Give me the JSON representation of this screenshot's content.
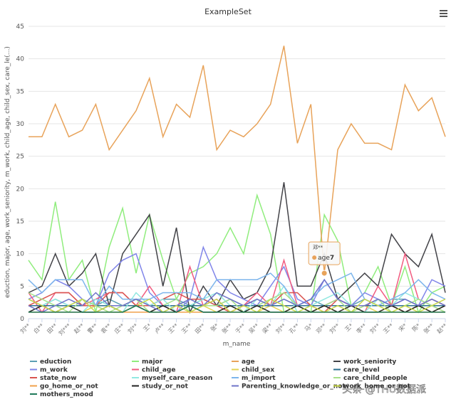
{
  "chart_data": {
    "type": "line",
    "title": "ExampleSet",
    "x_label": "m_name",
    "y_label": "eduction, major, age, work_seniority, m_work, child_age, child_sex, care_le(...)",
    "categories": [
      "刘**",
      "白**",
      "田**",
      "刘***",
      "赵**",
      "曹**",
      "袁**",
      "庄**",
      "刘**",
      "王*",
      "卢**",
      "王**",
      "王**",
      "田**",
      "张*",
      "张**",
      "于**",
      "吴**",
      "梁**",
      "刘**",
      "孔**",
      "马*",
      "邓**",
      "刘**",
      "王*",
      "李**",
      "刘**",
      "王**",
      "宋*",
      "陈*",
      "张**",
      "赵**"
    ],
    "ylim": [
      0,
      45
    ],
    "yticks": [
      0,
      5,
      10,
      15,
      20,
      25,
      30,
      35,
      40,
      45
    ],
    "grid": true,
    "series": [
      {
        "name": "eduction",
        "color": "#5b9fb5",
        "values": [
          3,
          2,
          3,
          2,
          3,
          2,
          3,
          2,
          3,
          2,
          3,
          3,
          2,
          3,
          2,
          3,
          2,
          3,
          2,
          3,
          2,
          3,
          2,
          3,
          2,
          3,
          2,
          3,
          3,
          2,
          3,
          2
        ]
      },
      {
        "name": "major",
        "color": "#90ed7d",
        "values": [
          9,
          6,
          18,
          6,
          9,
          1,
          11,
          17,
          7,
          16,
          9,
          3,
          7,
          8,
          10,
          14,
          10,
          19,
          13,
          1,
          2,
          1,
          16,
          12,
          2,
          4,
          8,
          2,
          8,
          1,
          4,
          5
        ]
      },
      {
        "name": "age",
        "color": "#e8a35a",
        "values": [
          28,
          28,
          33,
          28,
          29,
          33,
          26,
          29,
          32,
          37,
          28,
          33,
          31,
          39,
          26,
          29,
          28,
          30,
          33,
          42,
          27,
          33,
          7,
          26,
          30,
          27,
          27,
          26,
          36,
          32,
          34,
          28
        ]
      },
      {
        "name": "work_seniority",
        "color": "#434348",
        "values": [
          4,
          5,
          10,
          5,
          7,
          10,
          2,
          10,
          13,
          16,
          5,
          14,
          1,
          5,
          2,
          6,
          3,
          4,
          8,
          21,
          5,
          5,
          10,
          3,
          5,
          7,
          5,
          13,
          10,
          8,
          13,
          4
        ]
      },
      {
        "name": "m_work",
        "color": "#8085e9",
        "values": [
          3,
          4,
          6,
          5,
          3,
          2,
          7,
          9,
          10,
          4,
          2,
          1,
          3,
          11,
          6,
          4,
          3,
          2,
          5,
          8,
          3,
          2,
          6,
          3,
          2,
          4,
          3,
          2,
          3,
          2,
          6,
          5
        ]
      },
      {
        "name": "child_age",
        "color": "#f15c80",
        "values": [
          4,
          1,
          4,
          4,
          2,
          3,
          4,
          4,
          2,
          5,
          2,
          1,
          8,
          2,
          3,
          1,
          2,
          4,
          2,
          9,
          2,
          1,
          2,
          3,
          2,
          1,
          5,
          2,
          10,
          3,
          2,
          1
        ]
      },
      {
        "name": "child_sex",
        "color": "#e4d354",
        "values": [
          1,
          2,
          1,
          2,
          1,
          2,
          1,
          1,
          2,
          1,
          2,
          1,
          2,
          2,
          1,
          2,
          1,
          1,
          2,
          1,
          2,
          1,
          2,
          1,
          1,
          2,
          1,
          2,
          1,
          2,
          1,
          2
        ]
      },
      {
        "name": "care_level",
        "color": "#2b6f8f",
        "values": [
          2,
          2,
          2,
          2,
          2,
          2,
          2,
          2,
          2,
          2,
          2,
          2,
          2,
          2,
          2,
          2,
          2,
          2,
          2,
          2,
          2,
          2,
          2,
          2,
          2,
          2,
          2,
          2,
          2,
          2,
          2,
          2
        ]
      },
      {
        "name": "state_now",
        "color": "#d9534f",
        "values": [
          2,
          3,
          4,
          4,
          2,
          2,
          4,
          4,
          2,
          2,
          3,
          4,
          3,
          3,
          2,
          1,
          2,
          3,
          2,
          4,
          4,
          2,
          1,
          3,
          2,
          2,
          3,
          2,
          1,
          2,
          3,
          2
        ]
      },
      {
        "name": "myself_care_reason",
        "color": "#91e8e1",
        "values": [
          1,
          2,
          3,
          2,
          1,
          3,
          2,
          1,
          4,
          2,
          3,
          1,
          2,
          3,
          4,
          2,
          1,
          3,
          2,
          5,
          1,
          2,
          3,
          4,
          2,
          1,
          3,
          2,
          4,
          3,
          2,
          1
        ]
      },
      {
        "name": "m_import",
        "color": "#7cb5ec",
        "values": [
          6,
          4,
          6,
          6,
          6,
          2,
          5,
          3,
          3,
          3,
          4,
          4,
          4,
          3,
          6,
          6,
          6,
          6,
          7,
          5,
          2,
          3,
          5,
          6,
          7,
          3,
          2,
          3,
          4,
          6,
          4,
          3
        ]
      },
      {
        "name": "care_child_people",
        "color": "#a6e08a",
        "values": [
          4,
          3,
          2,
          1,
          3,
          2,
          1,
          2,
          3,
          1,
          2,
          3,
          1,
          2,
          2,
          3,
          1,
          2,
          3,
          4,
          2,
          1,
          2,
          3,
          1,
          2,
          3,
          1,
          2,
          3,
          2,
          1
        ]
      },
      {
        "name": "go_home_or_not",
        "color": "#f0a04b",
        "values": [
          1,
          1,
          1,
          1,
          1,
          1,
          1,
          1,
          1,
          1,
          1,
          1,
          1,
          1,
          1,
          1,
          1,
          1,
          1,
          1,
          1,
          1,
          1,
          1,
          1,
          1,
          1,
          1,
          1,
          1,
          1,
          1
        ]
      },
      {
        "name": "study_or_not",
        "color": "#222222",
        "values": [
          1,
          2,
          1,
          2,
          1,
          1,
          2,
          1,
          2,
          1,
          2,
          1,
          2,
          1,
          1,
          2,
          1,
          2,
          1,
          1,
          2,
          1,
          2,
          1,
          2,
          1,
          1,
          2,
          1,
          2,
          1,
          2
        ]
      },
      {
        "name": "Parenting_knowledge_or_not",
        "color": "#6f74c9",
        "values": [
          2,
          1,
          2,
          3,
          2,
          4,
          2,
          2,
          3,
          2,
          1,
          2,
          3,
          2,
          4,
          3,
          2,
          3,
          2,
          3,
          2,
          3,
          6,
          3,
          2,
          2,
          3,
          2,
          3,
          2,
          3,
          2
        ]
      },
      {
        "name": "work_home_or_not",
        "color": "#c9d84a",
        "values": [
          3,
          2,
          1,
          2,
          3,
          1,
          2,
          1,
          2,
          3,
          1,
          2,
          1,
          2,
          3,
          1,
          2,
          1,
          3,
          2,
          1,
          2,
          1,
          2,
          1,
          3,
          2,
          1,
          2,
          1,
          2,
          3
        ]
      },
      {
        "name": "mothers_mood",
        "color": "#1f7a5a",
        "values": [
          1,
          1,
          1,
          1,
          1,
          1,
          1,
          1,
          2,
          1,
          1,
          1,
          2,
          1,
          1,
          1,
          1,
          1,
          1,
          1,
          1,
          1,
          1,
          1,
          1,
          1,
          1,
          1,
          1,
          1,
          1,
          1
        ]
      }
    ],
    "tooltip": {
      "series": 2,
      "index": 22
    }
  },
  "watermark": "头条 @THU数据派"
}
